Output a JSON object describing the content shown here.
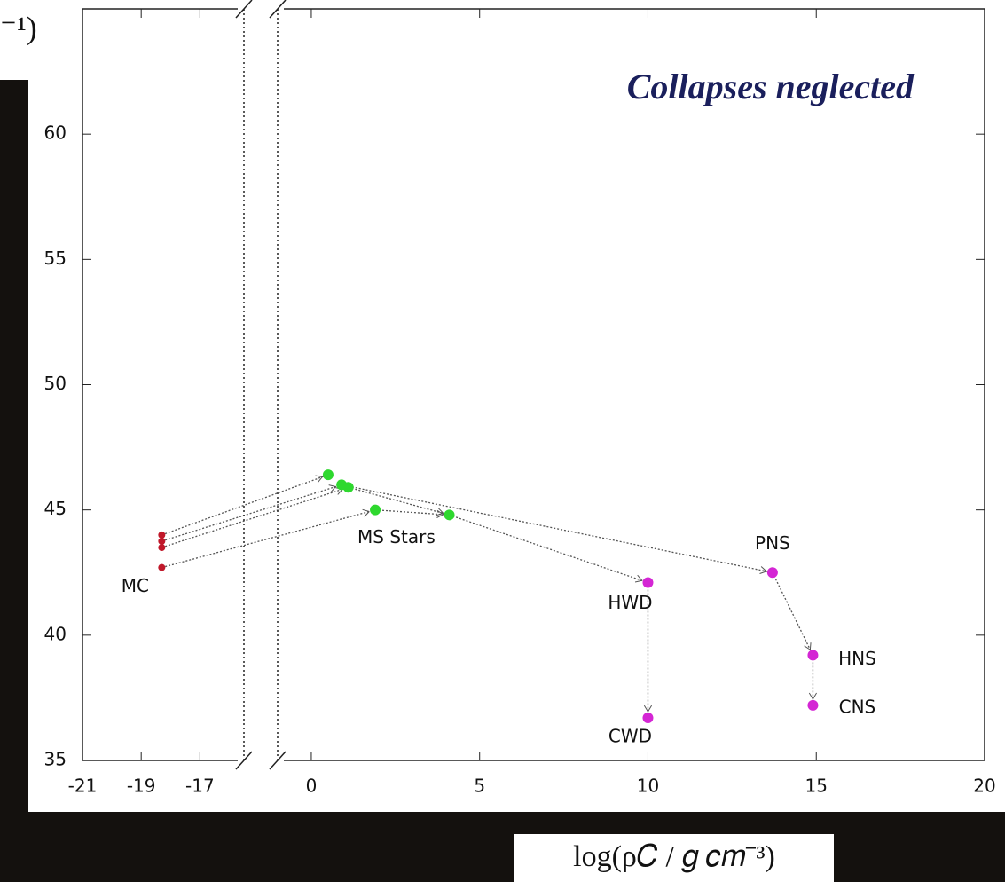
{
  "chart_data": {
    "type": "scatter",
    "title": "Collapses neglected",
    "ylabel_fragment": "⁻¹)",
    "xlabel": "log(ρ𝐶 / 𝑔 𝑐𝑚⁻³)",
    "xlim_segments": [
      [
        -21,
        -15.5
      ],
      [
        -1,
        20
      ]
    ],
    "xticks": [
      -21,
      -19,
      -17,
      0,
      5,
      10,
      15,
      20
    ],
    "ylim": [
      35,
      65
    ],
    "yticks": [
      35,
      40,
      45,
      50,
      55,
      60
    ],
    "series": [
      {
        "color": "#c0182a",
        "x": [
          -18.3,
          -18.3,
          -18.3,
          -18.3
        ],
        "values": [
          44.0,
          43.75,
          43.5,
          42.7
        ],
        "labels": [
          null,
          null,
          null,
          "MC"
        ]
      },
      {
        "color": "#2ed82e",
        "x": [
          0.5,
          0.9,
          1.1,
          1.9,
          4.1
        ],
        "values": [
          46.4,
          46.0,
          45.9,
          45.0,
          44.8
        ],
        "labels": [
          null,
          null,
          null,
          "MS Stars",
          null
        ]
      },
      {
        "color": "#d426d4",
        "x": [
          10,
          10,
          13.7,
          14.9,
          14.9
        ],
        "values": [
          42.1,
          36.7,
          42.5,
          39.2,
          37.2
        ],
        "labels": [
          "HWD",
          "CWD",
          "PNS",
          "HNS",
          "CNS"
        ]
      }
    ]
  }
}
